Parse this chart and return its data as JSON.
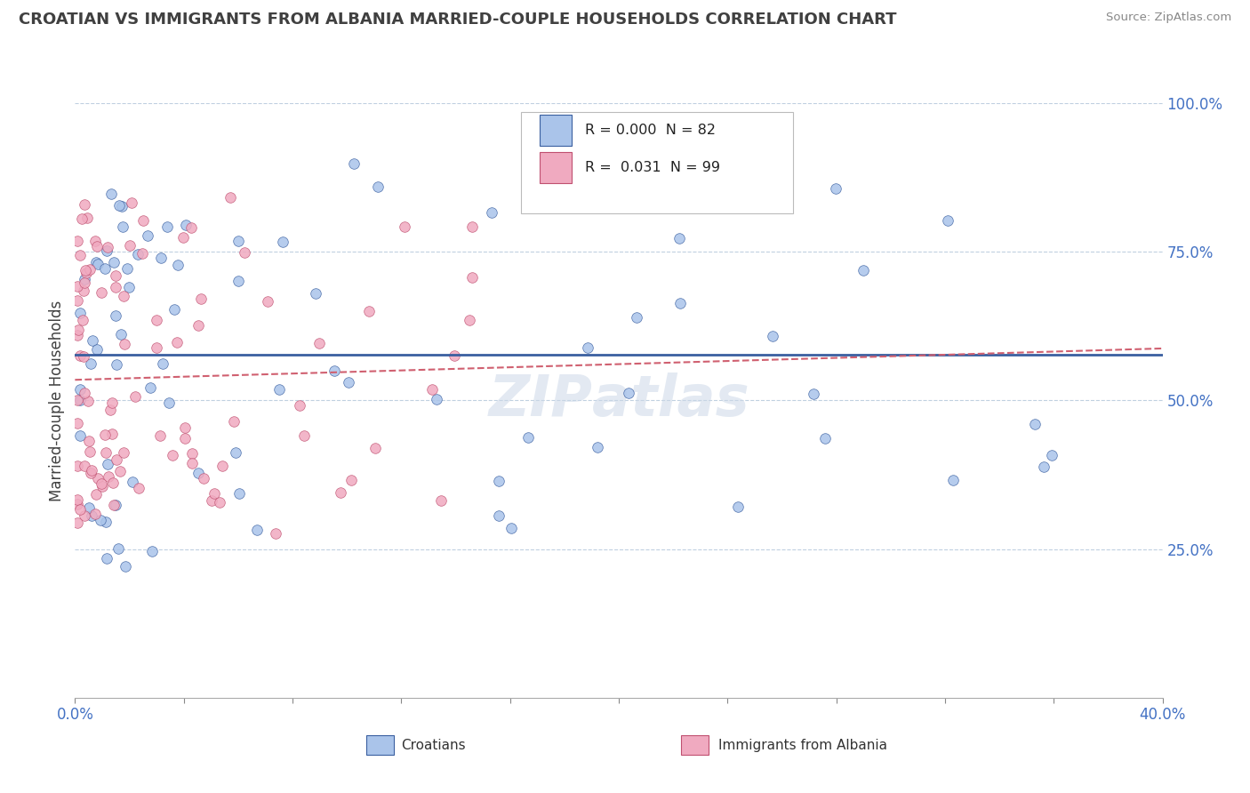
{
  "title": "CROATIAN VS IMMIGRANTS FROM ALBANIA MARRIED-COUPLE HOUSEHOLDS CORRELATION CHART",
  "source": "Source: ZipAtlas.com",
  "ylabel": "Married-couple Households",
  "xlim": [
    0.0,
    0.4
  ],
  "ylim": [
    0.0,
    1.0
  ],
  "legend_r_croatians": "0.000",
  "legend_n_croatians": "82",
  "legend_r_albania": "0.031",
  "legend_n_albania": "99",
  "color_croatians": "#aac4ea",
  "color_albania": "#f0aac0",
  "trendline_croatians": "#3a5fa0",
  "trendline_albania": "#d06070",
  "background_color": "#ffffff",
  "grid_color": "#c0d0e0",
  "title_color": "#404040",
  "watermark": "ZIPAtlas",
  "cr_seed": 7,
  "al_seed": 13
}
